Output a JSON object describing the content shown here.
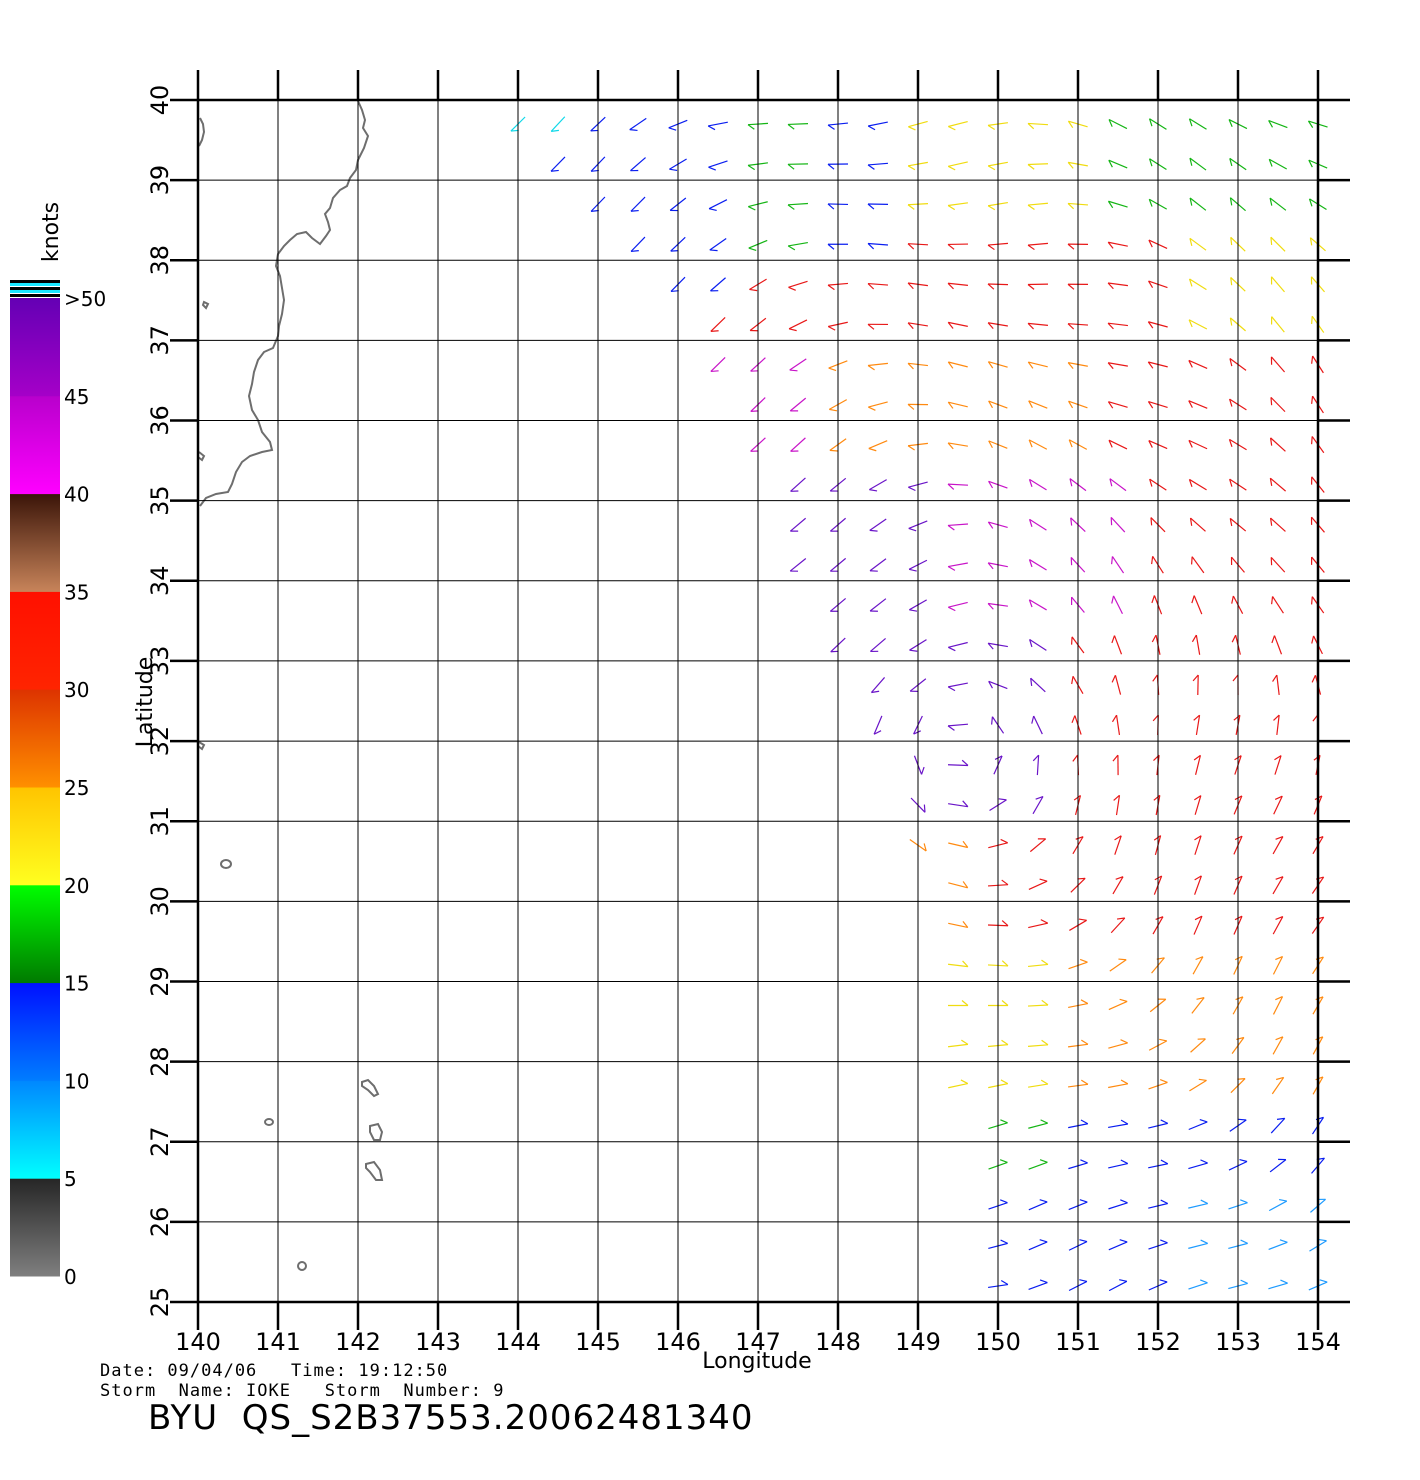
{
  "chart_data": {
    "type": "wind-vector-map",
    "xlabel": "Longitude",
    "ylabel": "Latitude",
    "xlim": [
      140,
      154
    ],
    "ylim": [
      25,
      40
    ],
    "x_ticks": [
      140,
      141,
      142,
      143,
      144,
      145,
      146,
      147,
      148,
      149,
      150,
      151,
      152,
      153,
      154
    ],
    "y_ticks": [
      25,
      26,
      27,
      28,
      29,
      30,
      31,
      32,
      33,
      34,
      35,
      36,
      37,
      38,
      39,
      40
    ],
    "grid": true,
    "colorbar": {
      "title": "knots",
      "labels": [
        "0",
        "5",
        "10",
        "15",
        "20",
        "25",
        "30",
        "35",
        "40",
        "45",
        ">50"
      ],
      "segments": [
        {
          "range": "0-5",
          "from": "#7f7f7f",
          "to": "#262626"
        },
        {
          "range": "5-10",
          "from": "#00ffff",
          "to": "#0087ff"
        },
        {
          "range": "10-15",
          "from": "#007dff",
          "to": "#0010ff"
        },
        {
          "range": "15-20",
          "from": "#007a00",
          "to": "#00ff00"
        },
        {
          "range": "20-25",
          "from": "#ffff20",
          "to": "#ffc400"
        },
        {
          "range": "25-30",
          "from": "#ff9000",
          "to": "#dd3300"
        },
        {
          "range": "30-35",
          "from": "#ff2400",
          "to": "#ff1000"
        },
        {
          "range": "35-40",
          "from": "#c8845a",
          "to": "#3a1408"
        },
        {
          "range": "40-45",
          "from": "#ff00ff",
          "to": "#b800cc"
        },
        {
          "range": "45-50",
          "from": "#a500c8",
          "to": "#6400b4"
        }
      ]
    },
    "speed_colors": {
      "blue": "#0a1ef0",
      "light_blue": "#1e9bff",
      "cyan": "#10d8e8",
      "green": "#15b515",
      "yellow": "#f0dc10",
      "orange": "#ff8a10",
      "red": "#e81818",
      "brown": "#8a3a1a",
      "magenta": "#c814c8",
      "purple": "#6a14c8",
      "black": "#000000",
      "gray": "#707070"
    },
    "coastline_color": "#6e6e6e"
  },
  "footer": {
    "date_line": "Date: 09/04/06   Time: 19:12:50",
    "storm_line": "Storm  Name: IOKE   Storm  Number: 9",
    "product_id": "BYU  QS_S2B37553.20062481340"
  }
}
